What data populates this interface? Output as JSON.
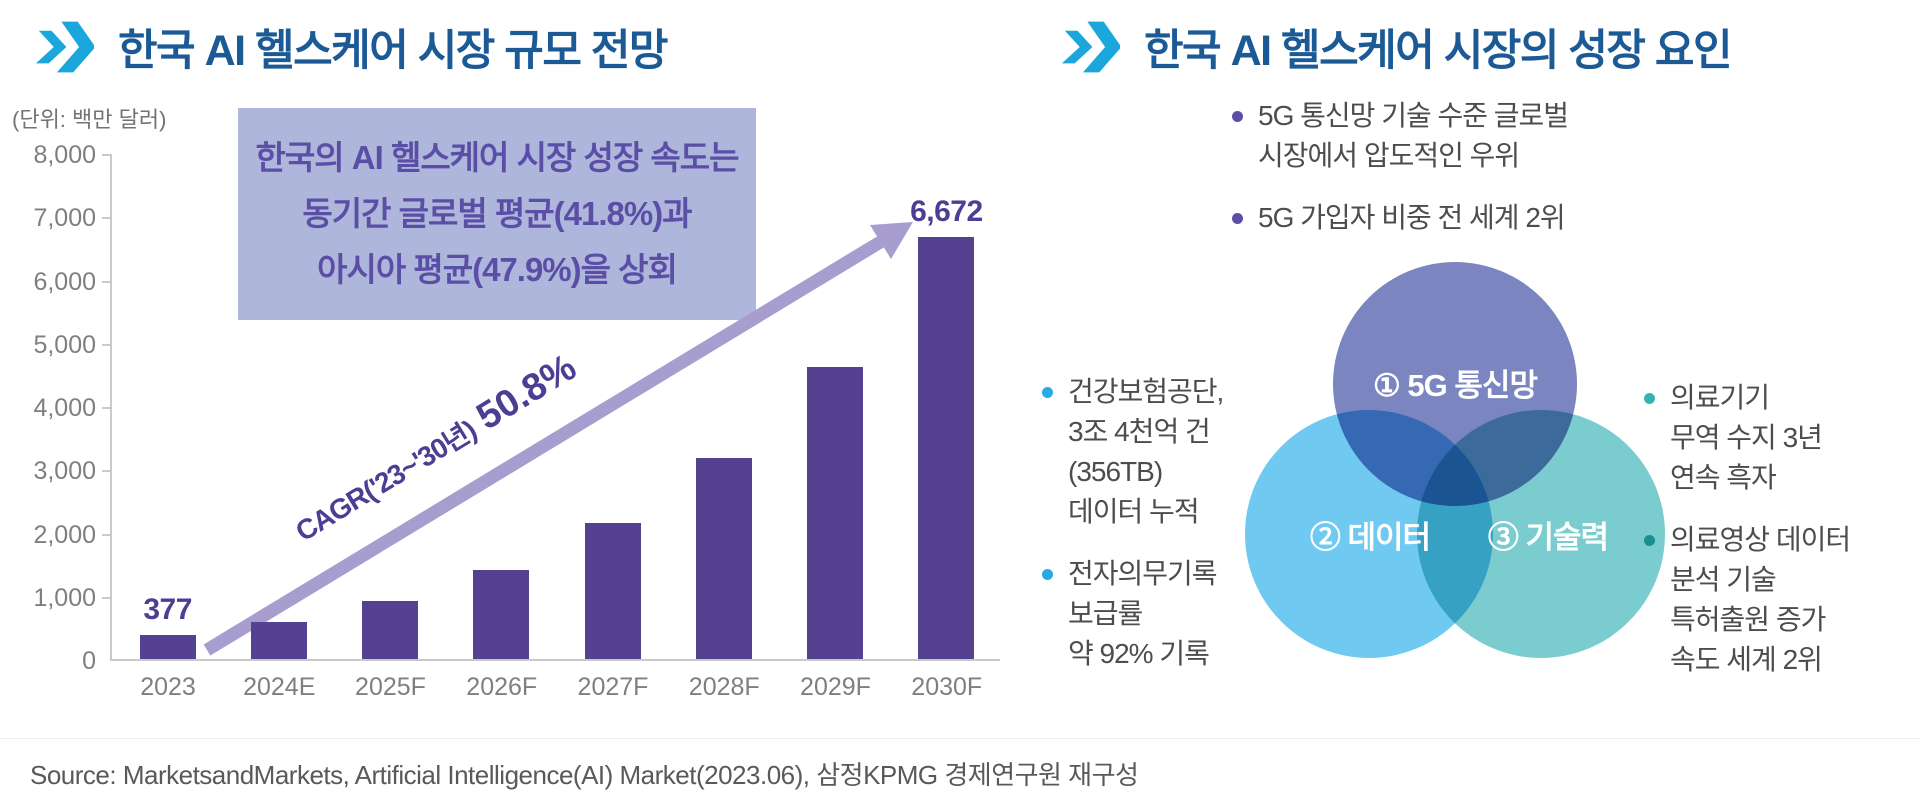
{
  "colors": {
    "accent_cyan": "#1ba7dc",
    "title_blue": "#1c5a96",
    "bar_purple": "#54418f",
    "value_label_purple": "#4b3e93",
    "arrow_purple": "#a89dcf",
    "callout_bg": "#aeb7db",
    "callout_text": "#5b4ea6",
    "axis_gray": "#7f7f7f",
    "body_text_gray": "#4d4d4d",
    "venn_top": "#717cba",
    "venn_left": "#5fc3ef",
    "venn_right": "#6cc7ca"
  },
  "left_panel": {
    "title": "한국 AI 헬스케어 시장 규모 전망",
    "unit_label": "(단위: 백만 달러)",
    "callout_lines": [
      "한국의 AI 헬스케어 시장 성장 속도는",
      "동기간 글로벌 평균(41.8%)과",
      "아시아 평균(47.9%)을 상회"
    ],
    "cagr_prefix": "CAGR('23~'30년)",
    "cagr_value": "50.8%"
  },
  "chart_data": {
    "type": "bar",
    "title": "한국 AI 헬스케어 시장 규모 전망",
    "unit": "백만 달러",
    "categories": [
      "2023",
      "2024E",
      "2025F",
      "2026F",
      "2027F",
      "2028F",
      "2029F",
      "2030F"
    ],
    "values": [
      377,
      580,
      920,
      1400,
      2150,
      3180,
      4620,
      6672
    ],
    "value_labels": {
      "0": "377",
      "7": "6,672"
    },
    "ylim": [
      0,
      8000
    ],
    "ytick_step": 1000,
    "grid": false,
    "annotation": "CAGR('23~'30년) 50.8%",
    "bar_color": "#54418f"
  },
  "right_panel": {
    "title": "한국 AI 헬스케어 시장의 성장 요인",
    "top_bullets": [
      "5G 통신망 기술 수준 글로벌\n시장에서 압도적인 우위",
      "5G 가입자 비중 전 세계 2위"
    ],
    "left_bullets": [
      "건강보험공단,\n3조 4천억 건\n(356TB)\n데이터 누적",
      "전자의무기록\n보급률\n약 92% 기록"
    ],
    "right_bullets": [
      "의료기기\n무역 수지 3년\n연속 흑자",
      "의료영상 데이터\n분석 기술\n특허출원 증가\n속도 세계 2위"
    ],
    "venn": [
      {
        "label": "① 5G 통신망"
      },
      {
        "label": "② 데이터"
      },
      {
        "label": "③ 기술력"
      }
    ]
  },
  "footer": {
    "source": "Source: MarketsandMarkets, Artificial Intelligence(AI) Market(2023.06), 삼정KPMG 경제연구원 재구성"
  }
}
